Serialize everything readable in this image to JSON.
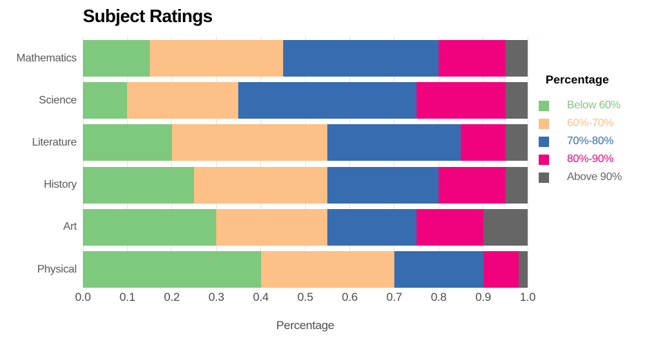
{
  "title": "Subject Ratings",
  "chart_data": {
    "type": "bar",
    "orientation": "horizontal",
    "stacked": true,
    "title": "Subject Ratings",
    "xlabel": "Percentage",
    "ylabel": "",
    "xlim": [
      0.0,
      1.0
    ],
    "x_ticks": [
      "0.0",
      "0.1",
      "0.2",
      "0.3",
      "0.4",
      "0.5",
      "0.6",
      "0.7",
      "0.8",
      "0.9",
      "1.0"
    ],
    "grid": "vertical",
    "categories": [
      "Mathematics",
      "Science",
      "Literature",
      "History",
      "Art",
      "Physical"
    ],
    "series": [
      {
        "name": "Below 60%",
        "color": "#7FC97F",
        "values": [
          0.15,
          0.1,
          0.2,
          0.25,
          0.3,
          0.4
        ]
      },
      {
        "name": "60%-70%",
        "color": "#FDC086",
        "values": [
          0.3,
          0.25,
          0.35,
          0.3,
          0.25,
          0.3
        ]
      },
      {
        "name": "70%-80%",
        "color": "#386CB0",
        "values": [
          0.35,
          0.4,
          0.3,
          0.25,
          0.2,
          0.2
        ]
      },
      {
        "name": "80%-90%",
        "color": "#F0027F",
        "values": [
          0.15,
          0.2,
          0.1,
          0.15,
          0.15,
          0.08
        ]
      },
      {
        "name": "Above 90%",
        "color": "#666666",
        "values": [
          0.05,
          0.05,
          0.05,
          0.05,
          0.1,
          0.02
        ]
      }
    ],
    "legend": {
      "title": "Percentage",
      "position": "right"
    }
  },
  "colors": {
    "background": "#FFFFFF",
    "grid": "#F6DCDC",
    "axis_text": "#4D4D4D",
    "category_text": "#595959",
    "title_text": "#000000"
  }
}
